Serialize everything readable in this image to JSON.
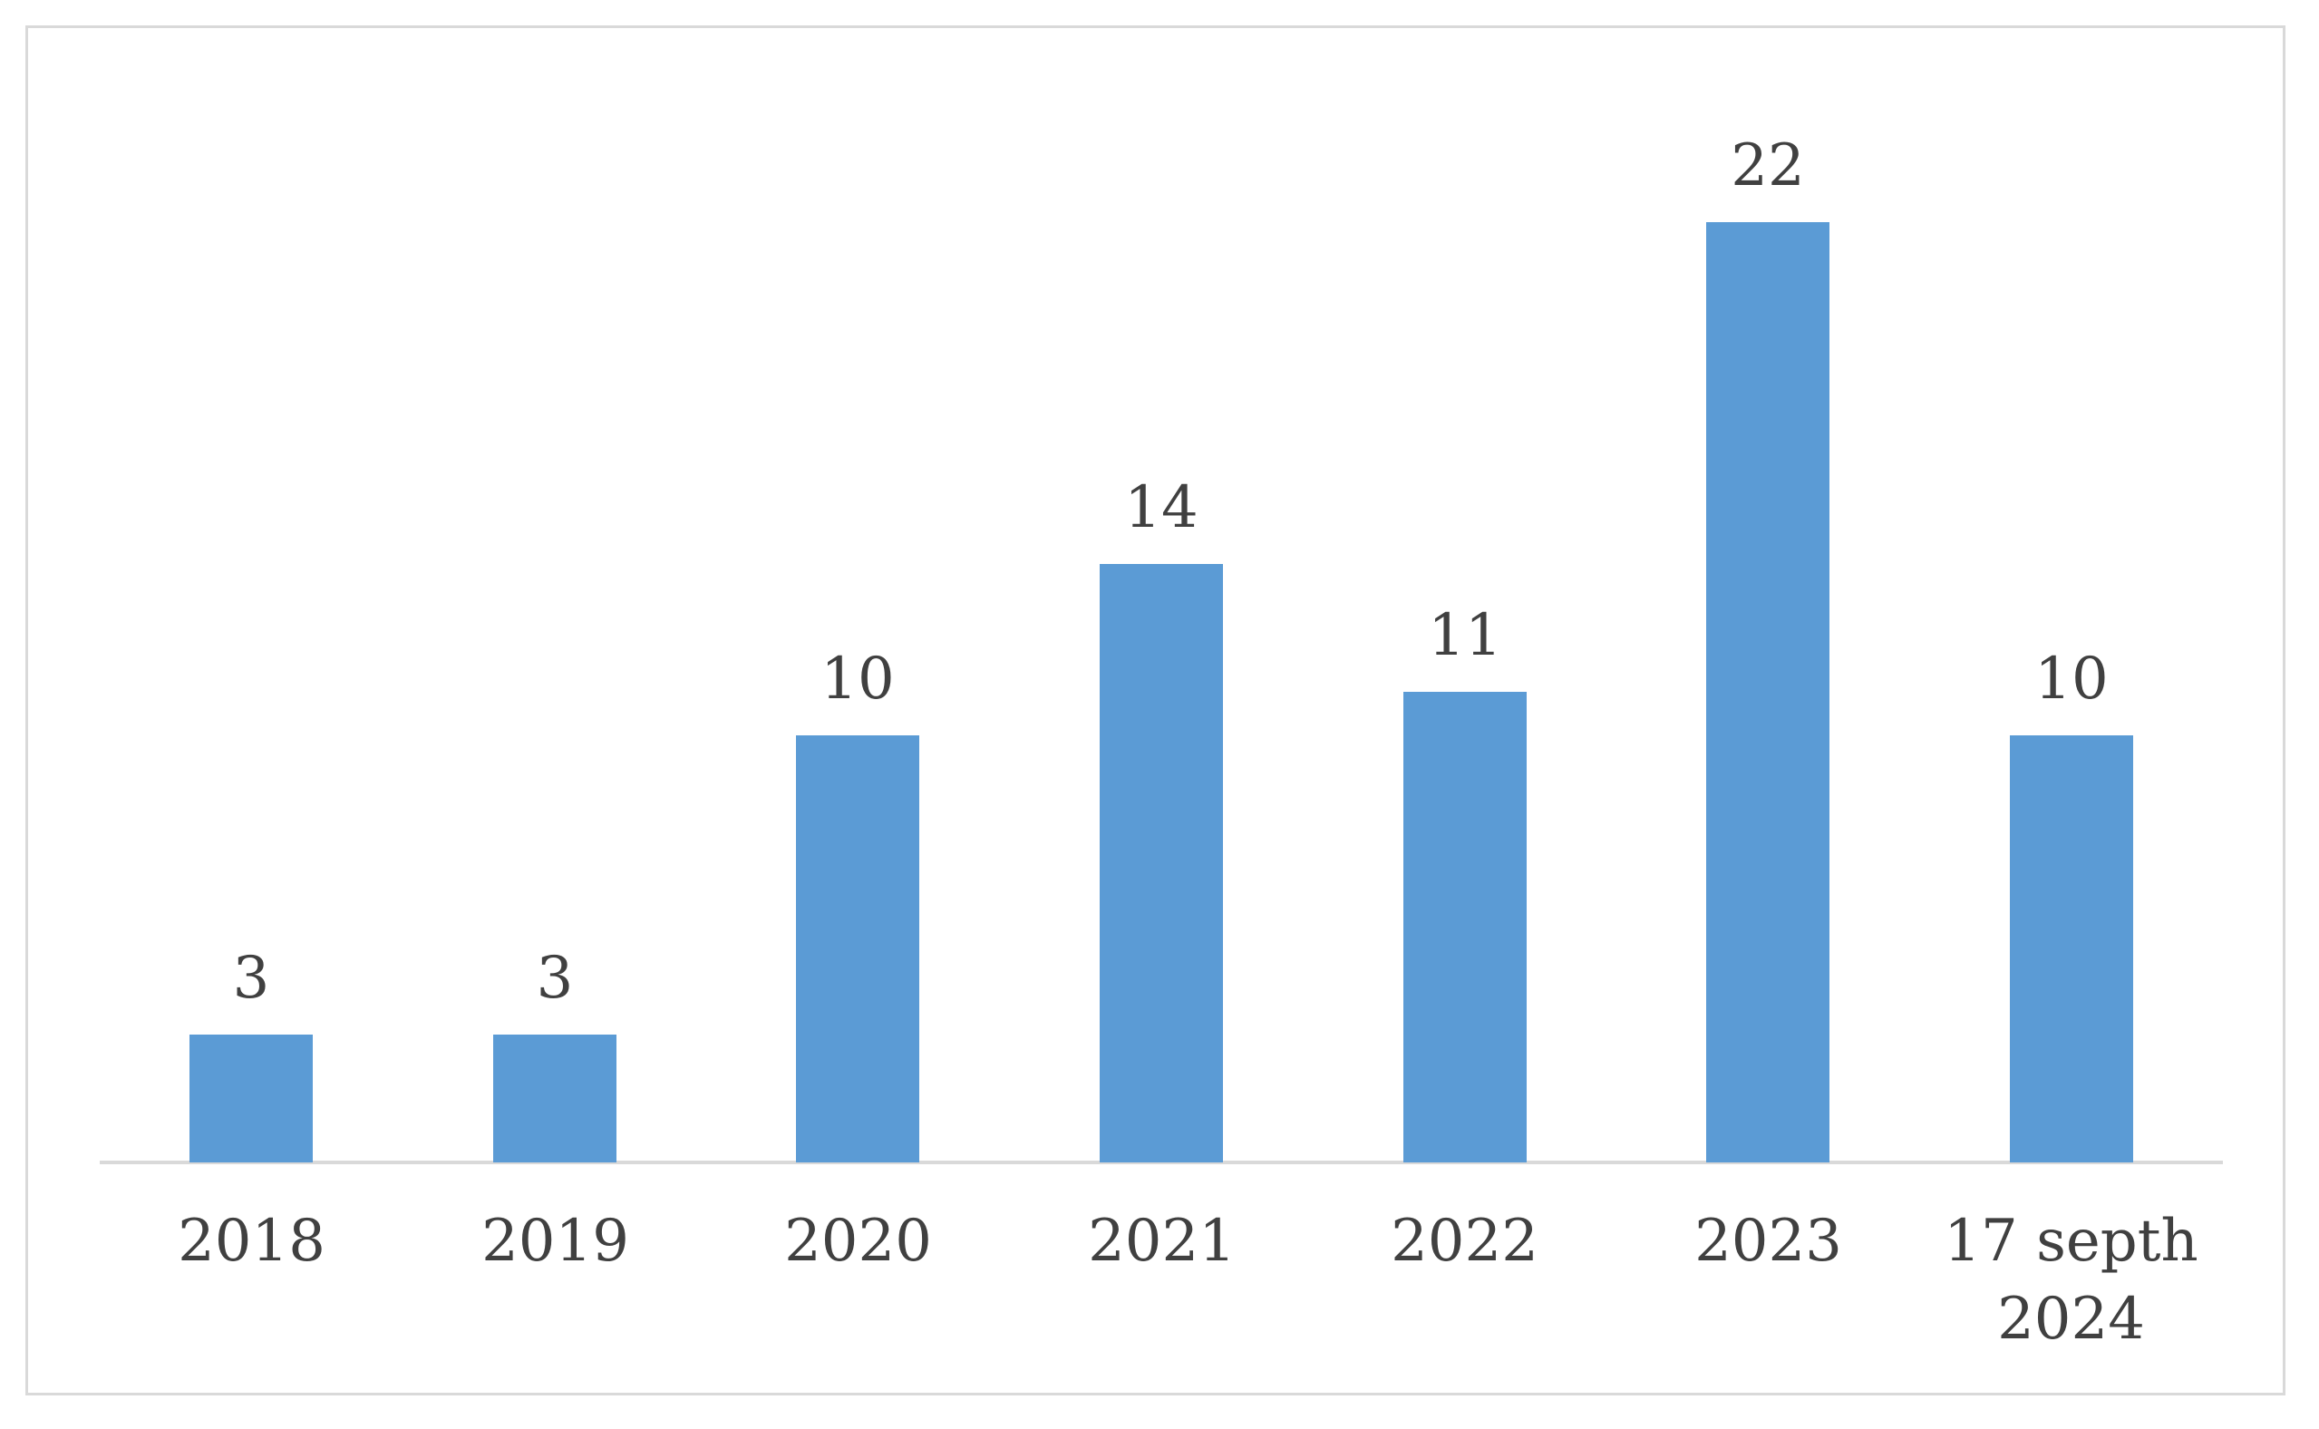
{
  "chart_data": {
    "type": "bar",
    "title": "",
    "xlabel": "",
    "ylabel": "",
    "categories": [
      "2018",
      "2019",
      "2020",
      "2021",
      "2022",
      "2023",
      "17 septh 2024"
    ],
    "values": [
      3,
      3,
      10,
      14,
      11,
      22,
      10
    ],
    "data_labels": [
      "3",
      "3",
      "10",
      "14",
      "11",
      "22",
      "10"
    ],
    "ylim": [
      0,
      22
    ],
    "grid": false,
    "legend": false,
    "bar_color": "#5B9BD5",
    "text_color": "#404040",
    "axis_line_color": "#D9D9D9",
    "frame_border_color": "#D9D9D9",
    "background_color": "#FFFFFF"
  }
}
